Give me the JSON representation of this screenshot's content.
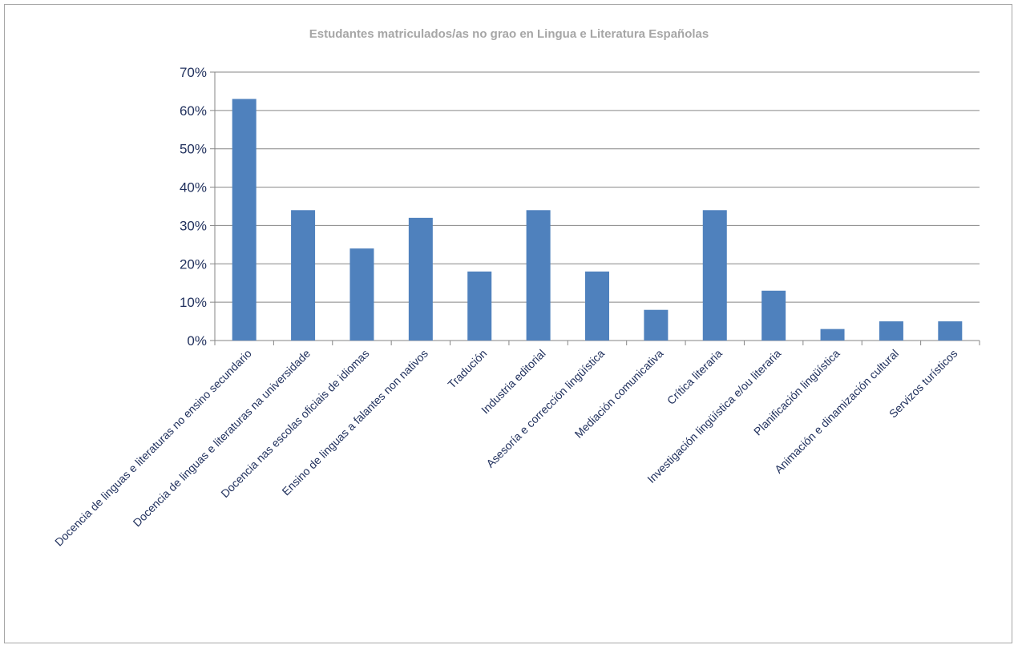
{
  "chart_data": {
    "type": "bar",
    "title": "Estudantes matriculados/as no grao en Lingua e Literatura Españolas",
    "xlabel": "",
    "ylabel": "",
    "ylim": [
      0,
      70
    ],
    "y_ticks": [
      "0%",
      "10%",
      "20%",
      "30%",
      "40%",
      "50%",
      "60%",
      "70%"
    ],
    "y_tick_values": [
      0,
      10,
      20,
      30,
      40,
      50,
      60,
      70
    ],
    "grid": true,
    "legend": "none",
    "bar_color": "#4f81bd",
    "categories": [
      "Docencia de linguas e literaturas no ensino secundario",
      "Docencia de linguas e literaturas na universidade",
      "Docencia nas escolas oficiais de idiomas",
      "Ensino de linguas a falantes non nativos",
      "Tradución",
      "Industria editorial",
      "Asesoría e corrección lingüística",
      "Mediación comunicativa",
      "Crítica literaria",
      "Investigación lingüística e/ou literaria",
      "Planificación lingüística",
      "Animación e dinamización cultural",
      "Servizos turísticos"
    ],
    "values": [
      63,
      34,
      24,
      32,
      18,
      34,
      18,
      8,
      34,
      13,
      3,
      5,
      5
    ]
  }
}
